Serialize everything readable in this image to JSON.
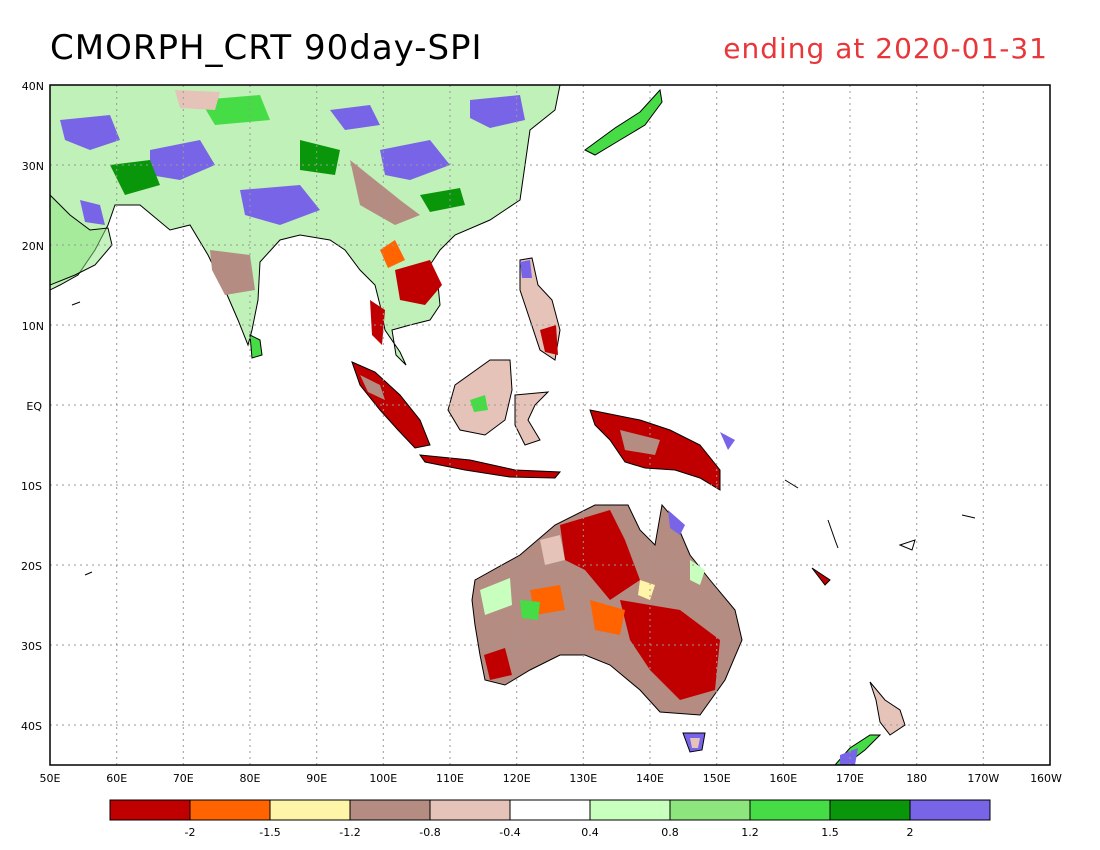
{
  "header": {
    "title": "CMORPH_CRT 90day-SPI",
    "date_label": "ending at 2020-01-31"
  },
  "map": {
    "lat_labels": [
      "40N",
      "30N",
      "20N",
      "10N",
      "EQ",
      "10S",
      "20S",
      "30S",
      "40S"
    ],
    "lon_labels": [
      "50E",
      "60E",
      "70E",
      "80E",
      "90E",
      "100E",
      "110E",
      "120E",
      "130E",
      "140E",
      "150E",
      "160E",
      "170E",
      "180",
      "170W",
      "160W"
    ]
  },
  "legend": {
    "labels": [
      "-2",
      "-1.5",
      "-1.2",
      "-0.8",
      "-0.4",
      "0.4",
      "0.8",
      "1.2",
      "1.5",
      "2"
    ],
    "colors": [
      "#c00000",
      "#ff6400",
      "#fff5a8",
      "#b48c82",
      "#e6c3b9",
      "#ffffff",
      "#c8ffbe",
      "#8ce67d",
      "#46dc46",
      "#0a960a",
      "#7864e6"
    ]
  },
  "colors": {
    "title_text": "#000000",
    "date_text": "#e8373b",
    "grid": "#999999"
  }
}
